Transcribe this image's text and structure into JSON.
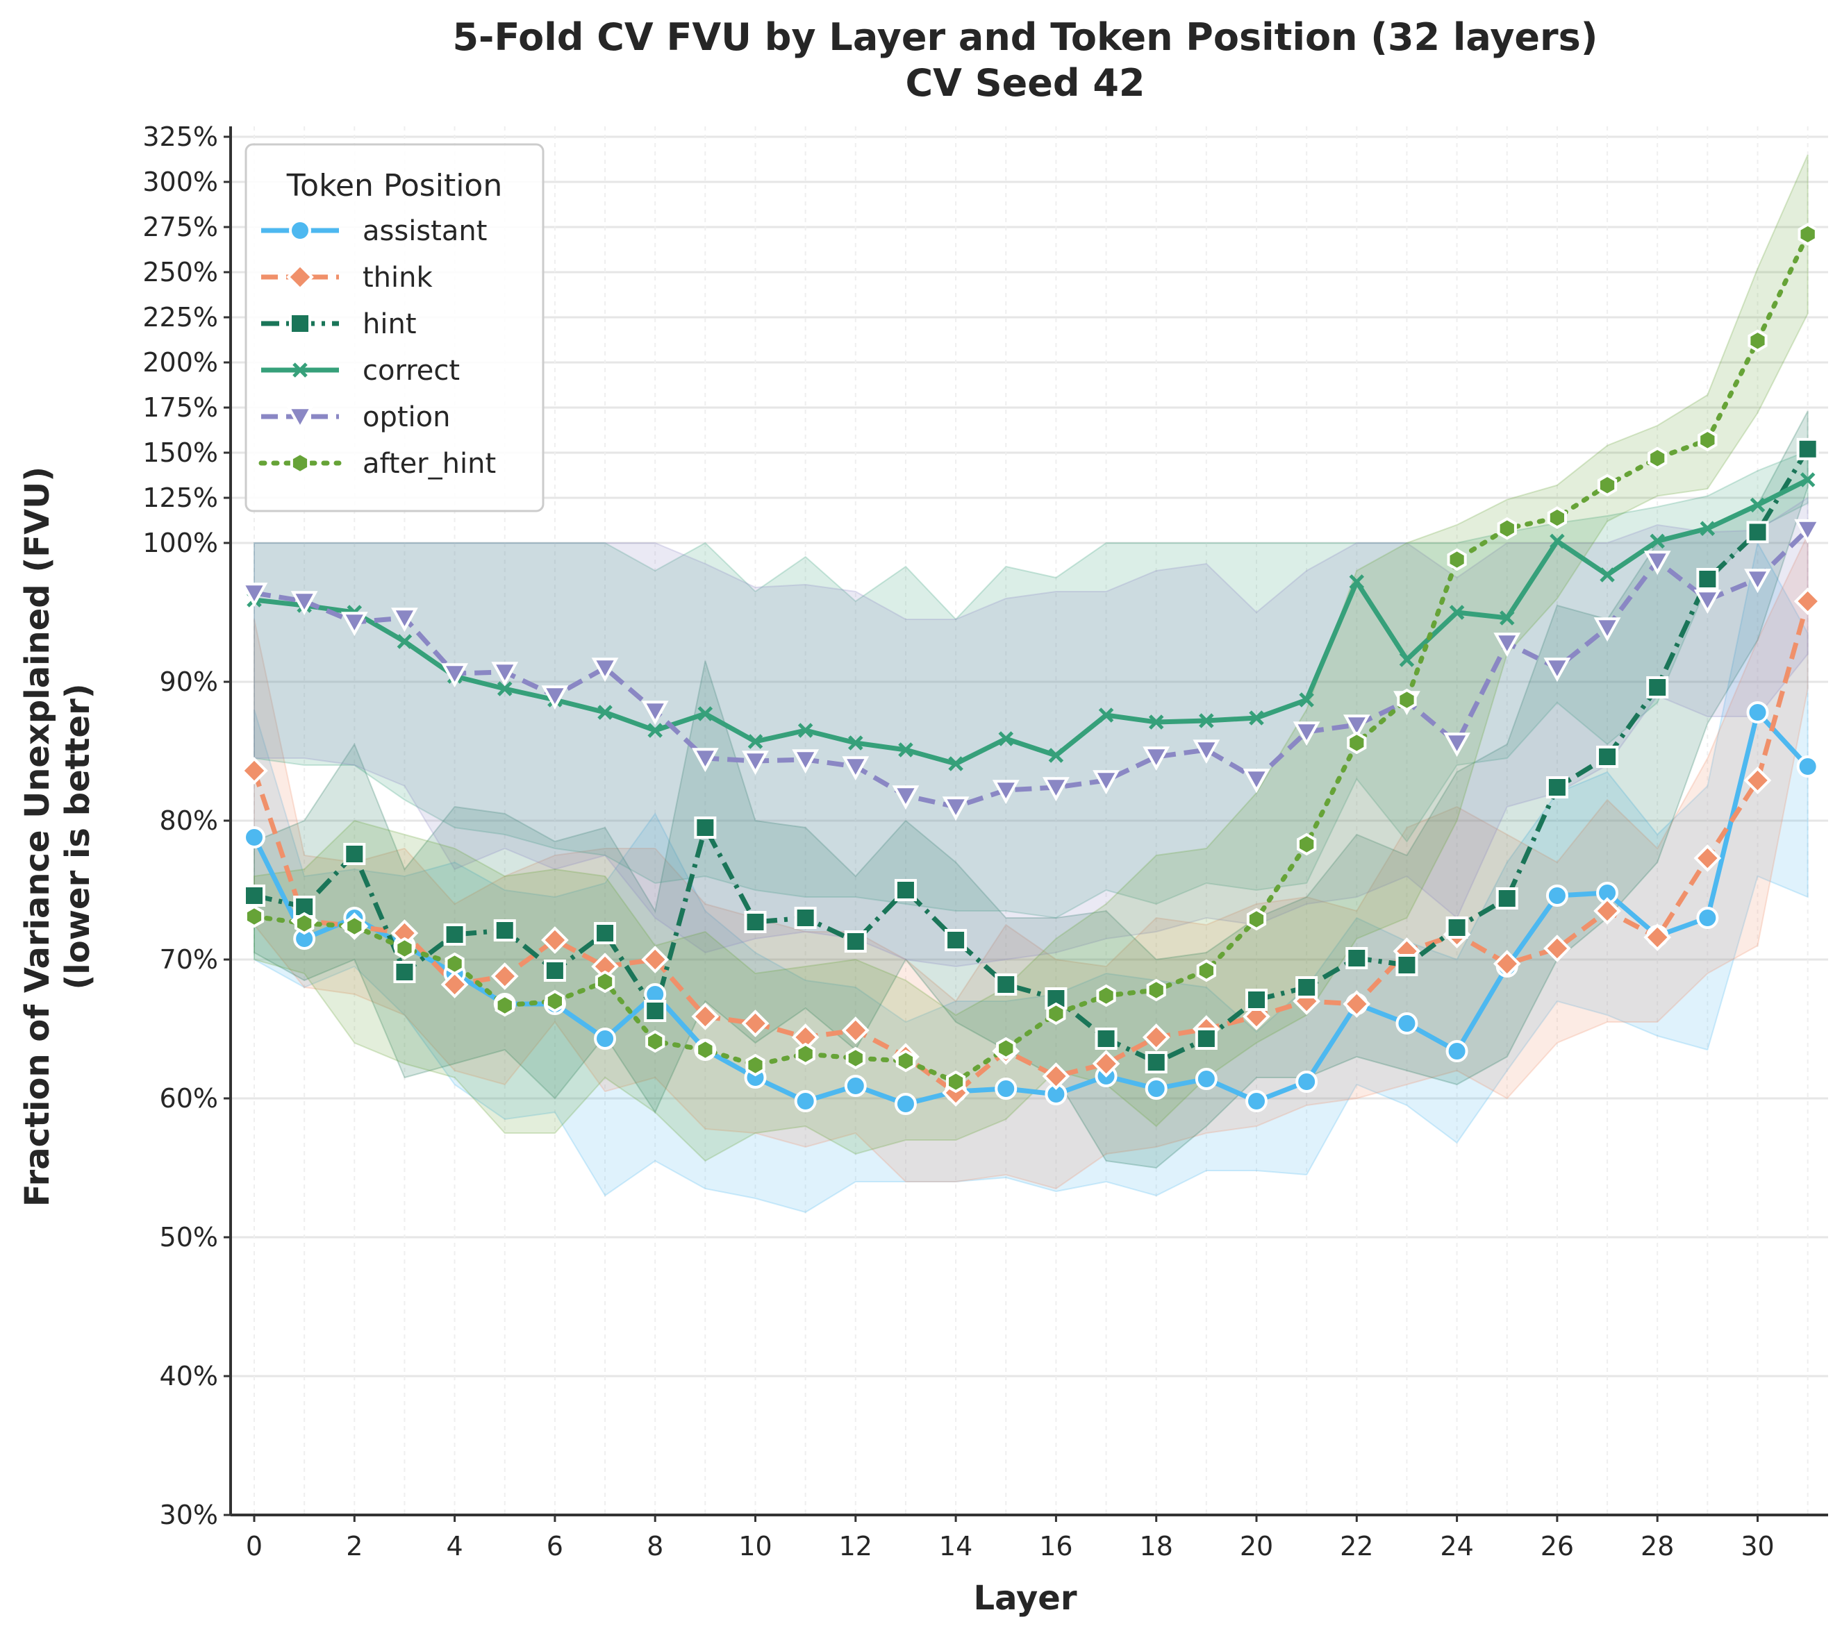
{
  "chart_data": {
    "type": "line",
    "title": "5-Fold CV FVU by Layer and Token Position (32 layers)",
    "subtitle": "CV Seed 42",
    "xlabel": "Layer",
    "ylabel": "Fraction of Variance Unexplained (FVU)",
    "ylabel2": "(lower is better)",
    "legend_title": "Token Position",
    "legend_position": "top-left",
    "y_scale": "piecewise: linear 30%-100%, compressed 100%-325%",
    "xlim": [
      -0.5,
      31.5
    ],
    "ylim": [
      30,
      325
    ],
    "x_ticks": [
      0,
      2,
      4,
      6,
      8,
      10,
      12,
      14,
      16,
      18,
      20,
      22,
      24,
      26,
      28,
      30
    ],
    "x_tick_labels": [
      "0",
      "2",
      "4",
      "6",
      "8",
      "10",
      "12",
      "14",
      "16",
      "18",
      "20",
      "22",
      "24",
      "26",
      "28",
      "30"
    ],
    "y_ticks": [
      30,
      40,
      50,
      60,
      70,
      80,
      90,
      100,
      125,
      150,
      175,
      200,
      225,
      250,
      275,
      300,
      325
    ],
    "y_tick_labels": [
      "30%",
      "40%",
      "50%",
      "60%",
      "70%",
      "80%",
      "90%",
      "100%",
      "125%",
      "150%",
      "175%",
      "200%",
      "225%",
      "250%",
      "275%",
      "300%",
      "325%"
    ],
    "grid": true,
    "x": [
      0,
      1,
      2,
      3,
      4,
      5,
      6,
      7,
      8,
      9,
      10,
      11,
      12,
      13,
      14,
      15,
      16,
      17,
      18,
      19,
      20,
      21,
      22,
      23,
      24,
      25,
      26,
      27,
      28,
      29,
      30,
      31
    ],
    "series": [
      {
        "name": "assistant",
        "color": "#4db8f0",
        "dash": "solid",
        "marker": "circle",
        "values": [
          78.8,
          71.5,
          73.0,
          71.0,
          69.0,
          66.8,
          66.8,
          64.3,
          67.5,
          63.5,
          61.5,
          59.8,
          60.9,
          59.6,
          60.5,
          60.7,
          60.3,
          61.6,
          60.7,
          61.4,
          59.8,
          61.2,
          66.8,
          65.4,
          63.4,
          69.5,
          74.6,
          74.8,
          71.7,
          73.0,
          87.8,
          83.9
        ],
        "lower": [
          70.0,
          68.0,
          69.5,
          66.0,
          61.0,
          58.5,
          59.0,
          53.0,
          55.5,
          53.5,
          52.8,
          51.8,
          54.0,
          54.0,
          54.0,
          54.3,
          53.3,
          54.0,
          53.0,
          54.8,
          54.8,
          54.5,
          61.0,
          59.5,
          56.8,
          62.0,
          67.0,
          66.0,
          64.5,
          63.5,
          76.0,
          74.5
        ],
        "upper": [
          88.0,
          76.0,
          76.5,
          76.0,
          77.0,
          75.0,
          74.5,
          75.5,
          80.5,
          73.5,
          70.5,
          68.5,
          68.0,
          65.5,
          67.0,
          67.0,
          67.5,
          69.0,
          68.5,
          68.0,
          64.8,
          68.0,
          73.0,
          71.3,
          70.0,
          77.0,
          82.0,
          83.5,
          79.0,
          82.5,
          100.0,
          93.5
        ]
      },
      {
        "name": "think",
        "color": "#f0906a",
        "dash": "dashed",
        "marker": "diamond",
        "values": [
          83.6,
          72.8,
          72.4,
          71.9,
          68.2,
          68.8,
          71.4,
          69.5,
          70.0,
          65.9,
          65.4,
          64.4,
          64.9,
          63.0,
          60.4,
          63.4,
          61.6,
          62.5,
          64.4,
          65.0,
          65.9,
          67.0,
          66.8,
          70.6,
          71.8,
          69.7,
          70.8,
          73.5,
          71.6,
          77.3,
          82.9,
          95.8
        ],
        "lower": [
          72.5,
          68.0,
          67.5,
          66.0,
          62.0,
          61.0,
          65.5,
          60.5,
          61.5,
          57.8,
          57.5,
          56.5,
          57.5,
          54.0,
          54.0,
          54.5,
          53.5,
          56.0,
          56.5,
          57.5,
          58.0,
          59.5,
          60.0,
          61.0,
          62.0,
          60.0,
          64.0,
          65.5,
          65.5,
          69.0,
          71.0,
          89.5
        ],
        "upper": [
          94.5,
          77.5,
          77.0,
          78.0,
          74.0,
          76.0,
          77.5,
          78.0,
          78.0,
          74.0,
          73.0,
          72.0,
          72.0,
          70.0,
          67.0,
          72.5,
          70.0,
          69.5,
          73.0,
          72.5,
          74.0,
          74.5,
          73.5,
          79.5,
          81.0,
          79.0,
          77.0,
          81.5,
          78.0,
          84.5,
          93.0,
          104.5
        ]
      },
      {
        "name": "hint",
        "color": "#1a7558",
        "dash": "dashdot",
        "marker": "square",
        "values": [
          74.6,
          73.8,
          77.6,
          69.1,
          71.8,
          72.1,
          69.2,
          71.9,
          66.3,
          79.5,
          72.7,
          73.0,
          71.3,
          75.0,
          71.4,
          68.2,
          67.2,
          64.3,
          62.6,
          64.3,
          67.1,
          68.0,
          70.1,
          69.6,
          72.3,
          74.4,
          82.4,
          84.6,
          89.6,
          97.4,
          106.0,
          152.0
        ],
        "lower": [
          70.5,
          68.5,
          70.0,
          61.5,
          62.5,
          63.5,
          60.0,
          64.5,
          59.0,
          67.0,
          64.0,
          66.5,
          63.5,
          70.0,
          65.5,
          63.5,
          61.5,
          55.5,
          55.0,
          58.0,
          61.5,
          61.5,
          63.0,
          62.0,
          61.0,
          63.0,
          70.0,
          73.0,
          77.0,
          87.0,
          93.0,
          131.0
        ],
        "upper": [
          78.5,
          80.0,
          85.5,
          76.5,
          81.0,
          80.5,
          78.5,
          79.5,
          73.5,
          91.5,
          80.0,
          79.5,
          76.0,
          80.0,
          77.0,
          73.0,
          73.0,
          73.5,
          70.0,
          70.5,
          73.0,
          74.5,
          79.0,
          77.5,
          83.5,
          85.5,
          95.5,
          94.5,
          100.0,
          108.0,
          121.0,
          173.0
        ]
      },
      {
        "name": "correct",
        "color": "#36a07a",
        "dash": "solid",
        "marker": "x",
        "values": [
          95.9,
          95.5,
          95.0,
          92.9,
          90.4,
          89.5,
          88.7,
          87.8,
          86.5,
          87.7,
          85.7,
          86.5,
          85.6,
          85.1,
          84.1,
          85.9,
          84.7,
          87.6,
          87.1,
          87.2,
          87.4,
          88.7,
          97.2,
          91.6,
          95.0,
          94.6,
          101.0,
          97.7,
          101.0,
          108.0,
          121.0,
          135.0
        ],
        "lower": [
          84.5,
          84.0,
          84.0,
          81.5,
          79.5,
          79.0,
          78.0,
          77.5,
          75.5,
          76.0,
          75.0,
          74.5,
          74.5,
          74.0,
          73.5,
          73.5,
          73.0,
          75.0,
          74.0,
          75.5,
          75.0,
          75.5,
          83.0,
          78.5,
          84.0,
          84.5,
          88.5,
          85.5,
          88.5,
          97.0,
          108.0,
          122.0
        ],
        "upper": [
          100.0,
          100.0,
          100.0,
          100.0,
          100.0,
          100.0,
          100.0,
          100.0,
          98.0,
          100.0,
          96.5,
          99.0,
          95.8,
          98.3,
          94.5,
          98.3,
          97.5,
          100.0,
          100.0,
          100.0,
          100.0,
          100.0,
          100.0,
          100.0,
          100.0,
          106.0,
          111.0,
          115.0,
          120.0,
          126.0,
          140.0,
          151.0
        ]
      },
      {
        "name": "option",
        "color": "#8a87c4",
        "dash": "dashed",
        "marker": "triangle-down",
        "values": [
          96.4,
          95.8,
          94.3,
          94.6,
          90.6,
          90.7,
          89.0,
          91.0,
          87.9,
          84.5,
          84.3,
          84.4,
          83.9,
          81.8,
          81.0,
          82.2,
          82.4,
          82.9,
          84.6,
          85.1,
          83.0,
          86.4,
          86.9,
          88.6,
          85.6,
          92.8,
          91.0,
          93.9,
          98.7,
          95.9,
          97.4,
          107.5
        ],
        "lower": [
          84.5,
          84.5,
          84.0,
          82.5,
          76.5,
          78.0,
          76.5,
          77.5,
          73.0,
          70.5,
          71.5,
          72.0,
          71.5,
          70.0,
          69.5,
          70.0,
          70.5,
          71.5,
          72.0,
          73.0,
          72.5,
          74.0,
          74.5,
          76.0,
          73.0,
          81.0,
          82.0,
          84.0,
          89.0,
          87.5,
          87.5,
          92.0
        ],
        "upper": [
          100.0,
          100.0,
          100.0,
          100.0,
          100.0,
          100.0,
          100.0,
          100.0,
          100.0,
          98.5,
          96.8,
          97.0,
          96.5,
          94.5,
          94.5,
          96.0,
          96.5,
          96.5,
          98.0,
          98.5,
          95.0,
          98.0,
          100.0,
          100.0,
          97.5,
          100.0,
          100.0,
          100.0,
          110.0,
          106.0,
          107.0,
          125.0
        ]
      },
      {
        "name": "after_hint",
        "color": "#66a337",
        "dash": "dotted",
        "marker": "hexagon",
        "values": [
          73.1,
          72.6,
          72.4,
          70.8,
          69.7,
          66.7,
          67.0,
          68.4,
          64.1,
          63.5,
          62.4,
          63.2,
          62.9,
          62.7,
          61.2,
          63.6,
          66.1,
          67.4,
          67.8,
          69.2,
          72.9,
          78.3,
          85.6,
          88.7,
          98.8,
          108.0,
          114.0,
          132.0,
          147.0,
          157.0,
          212.0,
          271.0
        ],
        "lower": [
          70.0,
          69.0,
          64.0,
          62.5,
          61.5,
          57.5,
          57.5,
          61.5,
          59.0,
          55.5,
          57.5,
          58.0,
          56.0,
          57.0,
          57.0,
          58.5,
          62.0,
          61.0,
          58.0,
          61.5,
          64.0,
          66.0,
          71.5,
          73.0,
          80.0,
          92.0,
          96.0,
          112.0,
          126.0,
          130.0,
          172.0,
          227.0
        ],
        "upper": [
          76.0,
          76.5,
          80.0,
          79.0,
          78.0,
          76.0,
          76.5,
          76.0,
          71.0,
          72.0,
          69.0,
          69.5,
          70.0,
          68.5,
          66.0,
          68.0,
          71.5,
          74.0,
          77.5,
          78.0,
          82.0,
          88.0,
          98.0,
          100.0,
          110.0,
          124.0,
          132.0,
          154.0,
          165.0,
          182.0,
          252.0,
          315.0
        ]
      }
    ]
  }
}
